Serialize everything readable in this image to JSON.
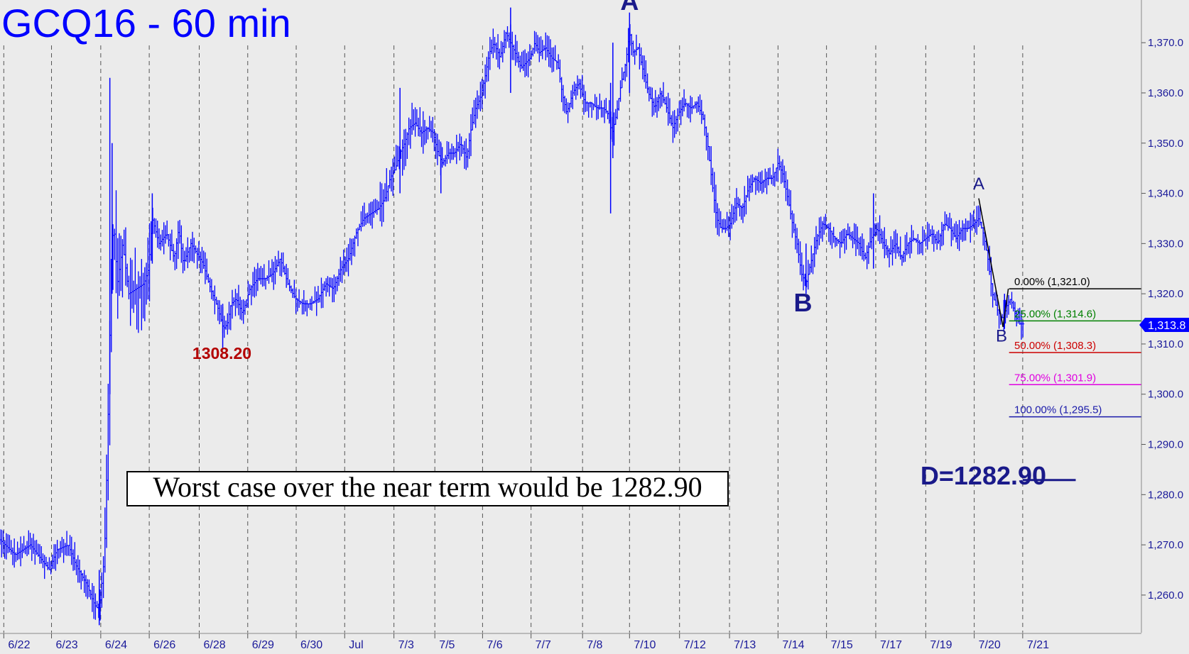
{
  "chart_data": {
    "type": "ohlc",
    "title": "GCQ16 - 60 min",
    "xlabel": "",
    "ylabel": "",
    "ylim": [
      1252.5,
      1378.5
    ],
    "grid": {
      "vertical": true,
      "horizontal": false
    },
    "y_ticks": [
      1260,
      1270,
      1280,
      1290,
      1300,
      1310,
      1320,
      1330,
      1340,
      1350,
      1360,
      1370
    ],
    "y_tick_labels": [
      "1,260.0",
      "1,270.0",
      "1,280.0",
      "1,290.0",
      "1,300.0",
      "1,310.0",
      "1,320.0",
      "1,330.0",
      "1,340.0",
      "1,350.0",
      "1,360.0",
      "1,370.0"
    ],
    "x_bar_range": [
      0,
      1352
    ],
    "x_labels": [
      {
        "label": "6/22",
        "bar": 5
      },
      {
        "label": "6/23",
        "bar": 68
      },
      {
        "label": "6/24",
        "bar": 133
      },
      {
        "label": "6/26",
        "bar": 197
      },
      {
        "label": "6/28",
        "bar": 263
      },
      {
        "label": "6/29",
        "bar": 327
      },
      {
        "label": "6/30",
        "bar": 391
      },
      {
        "label": "Jul",
        "bar": 455
      },
      {
        "label": "7/3",
        "bar": 520
      },
      {
        "label": "7/5",
        "bar": 574
      },
      {
        "label": "7/6",
        "bar": 637
      },
      {
        "label": "7/7",
        "bar": 701
      },
      {
        "label": "7/8",
        "bar": 769
      },
      {
        "label": "7/10",
        "bar": 831
      },
      {
        "label": "7/12",
        "bar": 897
      },
      {
        "label": "7/13",
        "bar": 963
      },
      {
        "label": "7/14",
        "bar": 1027
      },
      {
        "label": "7/15",
        "bar": 1091
      },
      {
        "label": "7/17",
        "bar": 1156
      },
      {
        "label": "7/19",
        "bar": 1222
      },
      {
        "label": "7/20",
        "bar": 1286
      },
      {
        "label": "7/21",
        "bar": 1350
      }
    ],
    "price_path": [
      [
        0,
        1271
      ],
      [
        20,
        1268
      ],
      [
        40,
        1270
      ],
      [
        55,
        1267
      ],
      [
        65,
        1265
      ],
      [
        75,
        1269
      ],
      [
        90,
        1270
      ],
      [
        100,
        1266
      ],
      [
        115,
        1262
      ],
      [
        125,
        1258
      ],
      [
        131,
        1257
      ],
      [
        138,
        1268
      ],
      [
        142,
        1290
      ],
      [
        146,
        1320
      ],
      [
        150,
        1335
      ],
      [
        155,
        1322
      ],
      [
        162,
        1330
      ],
      [
        170,
        1320
      ],
      [
        180,
        1321
      ],
      [
        190,
        1322
      ],
      [
        196,
        1325
      ],
      [
        201,
        1335
      ],
      [
        210,
        1330
      ],
      [
        220,
        1332
      ],
      [
        230,
        1327
      ],
      [
        236,
        1333
      ],
      [
        242,
        1326
      ],
      [
        252,
        1330
      ],
      [
        260,
        1328
      ],
      [
        268,
        1326
      ],
      [
        278,
        1321
      ],
      [
        288,
        1317
      ],
      [
        295,
        1313
      ],
      [
        300,
        1314
      ],
      [
        305,
        1318
      ],
      [
        312,
        1319
      ],
      [
        320,
        1316
      ],
      [
        330,
        1321
      ],
      [
        340,
        1323
      ],
      [
        350,
        1323
      ],
      [
        360,
        1324
      ],
      [
        370,
        1327
      ],
      [
        380,
        1322
      ],
      [
        390,
        1319
      ],
      [
        400,
        1318
      ],
      [
        410,
        1318
      ],
      [
        420,
        1319
      ],
      [
        430,
        1322
      ],
      [
        440,
        1321
      ],
      [
        450,
        1325
      ],
      [
        460,
        1327
      ],
      [
        470,
        1332
      ],
      [
        480,
        1335
      ],
      [
        490,
        1336
      ],
      [
        500,
        1337
      ],
      [
        508,
        1339
      ],
      [
        515,
        1343
      ],
      [
        522,
        1345
      ],
      [
        528,
        1348
      ],
      [
        534,
        1350
      ],
      [
        540,
        1353
      ],
      [
        548,
        1354
      ],
      [
        556,
        1352
      ],
      [
        564,
        1353
      ],
      [
        572,
        1352
      ],
      [
        578,
        1348
      ],
      [
        584,
        1346
      ],
      [
        592,
        1348
      ],
      [
        600,
        1348
      ],
      [
        608,
        1350
      ],
      [
        616,
        1347
      ],
      [
        622,
        1353
      ],
      [
        628,
        1357
      ],
      [
        634,
        1359
      ],
      [
        640,
        1363
      ],
      [
        646,
        1368
      ],
      [
        652,
        1370
      ],
      [
        660,
        1367
      ],
      [
        668,
        1372
      ],
      [
        674,
        1370
      ],
      [
        680,
        1368
      ],
      [
        688,
        1365
      ],
      [
        694,
        1366
      ],
      [
        700,
        1367
      ],
      [
        706,
        1370
      ],
      [
        712,
        1368
      ],
      [
        720,
        1369
      ],
      [
        728,
        1367
      ],
      [
        736,
        1366
      ],
      [
        742,
        1360
      ],
      [
        748,
        1356
      ],
      [
        756,
        1360
      ],
      [
        764,
        1362
      ],
      [
        772,
        1358
      ],
      [
        780,
        1358
      ],
      [
        788,
        1357
      ],
      [
        796,
        1357
      ],
      [
        802,
        1356
      ],
      [
        808,
        1352
      ],
      [
        814,
        1356
      ],
      [
        820,
        1362
      ],
      [
        826,
        1366
      ],
      [
        831,
        1372
      ],
      [
        836,
        1368
      ],
      [
        842,
        1369
      ],
      [
        848,
        1365
      ],
      [
        856,
        1360
      ],
      [
        864,
        1357
      ],
      [
        872,
        1360
      ],
      [
        880,
        1357
      ],
      [
        888,
        1353
      ],
      [
        896,
        1356
      ],
      [
        904,
        1358
      ],
      [
        912,
        1357
      ],
      [
        920,
        1358
      ],
      [
        928,
        1355
      ],
      [
        934,
        1350
      ],
      [
        940,
        1342
      ],
      [
        946,
        1335
      ],
      [
        952,
        1333
      ],
      [
        958,
        1333
      ],
      [
        964,
        1334
      ],
      [
        972,
        1338
      ],
      [
        980,
        1337
      ],
      [
        988,
        1341
      ],
      [
        996,
        1343
      ],
      [
        1004,
        1342
      ],
      [
        1012,
        1343
      ],
      [
        1020,
        1343
      ],
      [
        1027,
        1346
      ],
      [
        1033,
        1344
      ],
      [
        1040,
        1339
      ],
      [
        1046,
        1334
      ],
      [
        1052,
        1330
      ],
      [
        1058,
        1324
      ],
      [
        1064,
        1322
      ],
      [
        1070,
        1326
      ],
      [
        1078,
        1331
      ],
      [
        1086,
        1334
      ],
      [
        1094,
        1333
      ],
      [
        1102,
        1331
      ],
      [
        1110,
        1330
      ],
      [
        1118,
        1332
      ],
      [
        1126,
        1331
      ],
      [
        1134,
        1330
      ],
      [
        1142,
        1327
      ],
      [
        1150,
        1331
      ],
      [
        1158,
        1333
      ],
      [
        1166,
        1330
      ],
      [
        1174,
        1328
      ],
      [
        1182,
        1330
      ],
      [
        1190,
        1327
      ],
      [
        1198,
        1330
      ],
      [
        1206,
        1331
      ],
      [
        1214,
        1330
      ],
      [
        1222,
        1331
      ],
      [
        1230,
        1332
      ],
      [
        1238,
        1330
      ],
      [
        1246,
        1334
      ],
      [
        1254,
        1333
      ],
      [
        1262,
        1331
      ],
      [
        1270,
        1333
      ],
      [
        1278,
        1333
      ],
      [
        1286,
        1334
      ],
      [
        1292,
        1335
      ],
      [
        1298,
        1332
      ],
      [
        1304,
        1327
      ],
      [
        1310,
        1320
      ],
      [
        1316,
        1317
      ],
      [
        1322,
        1315
      ],
      [
        1326,
        1316
      ],
      [
        1330,
        1318
      ],
      [
        1334,
        1319
      ],
      [
        1338,
        1317
      ],
      [
        1342,
        1315
      ],
      [
        1346,
        1314
      ],
      [
        1350,
        1314
      ],
      [
        1352,
        1314
      ]
    ],
    "spikes": [
      {
        "bar": 145,
        "low": 1300,
        "high": 1363
      },
      {
        "bar": 148,
        "low": 1320,
        "high": 1350
      },
      {
        "bar": 131,
        "low": 1254,
        "high": 1265
      },
      {
        "bar": 528,
        "low": 1340,
        "high": 1361
      },
      {
        "bar": 582,
        "low": 1340,
        "high": 1350
      },
      {
        "bar": 806,
        "low": 1336,
        "high": 1362
      },
      {
        "bar": 809,
        "low": 1347,
        "high": 1370
      },
      {
        "bar": 831,
        "low": 1360,
        "high": 1376
      },
      {
        "bar": 674,
        "low": 1360,
        "high": 1377
      },
      {
        "bar": 201,
        "low": 1326,
        "high": 1340
      },
      {
        "bar": 294,
        "low": 1309,
        "high": 1318
      },
      {
        "bar": 1064,
        "low": 1320,
        "high": 1330
      },
      {
        "bar": 1153,
        "low": 1325,
        "high": 1340
      },
      {
        "bar": 1326,
        "low": 1313,
        "high": 1320
      }
    ],
    "annotations": [
      {
        "text": "A",
        "bar": 831,
        "price": 1376.5,
        "style": "large"
      },
      {
        "text": "B",
        "bar": 1060,
        "price": 1316.5,
        "style": "large"
      },
      {
        "text": "A",
        "bar": 1292,
        "price": 1340.8,
        "style": "small"
      },
      {
        "text": "B",
        "bar": 1322,
        "price": 1310.5,
        "style": "small"
      },
      {
        "text": "1308.20",
        "bar": 293,
        "price": 1307.0,
        "style": "red"
      },
      {
        "text": "D=1282.90",
        "bar": 1215,
        "price": 1282.0,
        "style": "target"
      }
    ],
    "abc_lines": [
      {
        "from": [
          1292,
          1339
        ],
        "to": [
          1324,
          1313.4
        ]
      },
      {
        "from": [
          1324,
          1313.4
        ],
        "to": [
          1331,
          1321
        ]
      }
    ],
    "fib_levels": [
      {
        "label": "0.00% (1,321.0)",
        "pct": 0,
        "value": 1321.0,
        "color": "#000000"
      },
      {
        "label": "25.00% (1,314.6)",
        "pct": 25,
        "value": 1314.6,
        "color": "#008000"
      },
      {
        "label": "50.00% (1,308.3)",
        "pct": 50,
        "value": 1308.3,
        "color": "#cc0000"
      },
      {
        "label": "75.00% (1,301.9)",
        "pct": 75,
        "value": 1301.9,
        "color": "#e000e0"
      },
      {
        "label": "100.00% (1,295.5)",
        "pct": 100,
        "value": 1295.5,
        "color": "#1a1aaa"
      }
    ],
    "target_line": {
      "value": 1282.9,
      "from_bar": 1350,
      "to_bar": 1420
    },
    "current_price": {
      "label": "1,313.8",
      "value": 1313.8
    },
    "note": "Worst case over the near term would be 1282.90",
    "colors": {
      "bars": "#0000ff",
      "title": "#0000ff",
      "axis_text": "#1a1a9a",
      "annotation": "#1a1a8a",
      "red_label": "#b30000",
      "price_badge": "#0000ff",
      "background": "#ebebeb",
      "grid": "#555555"
    }
  }
}
